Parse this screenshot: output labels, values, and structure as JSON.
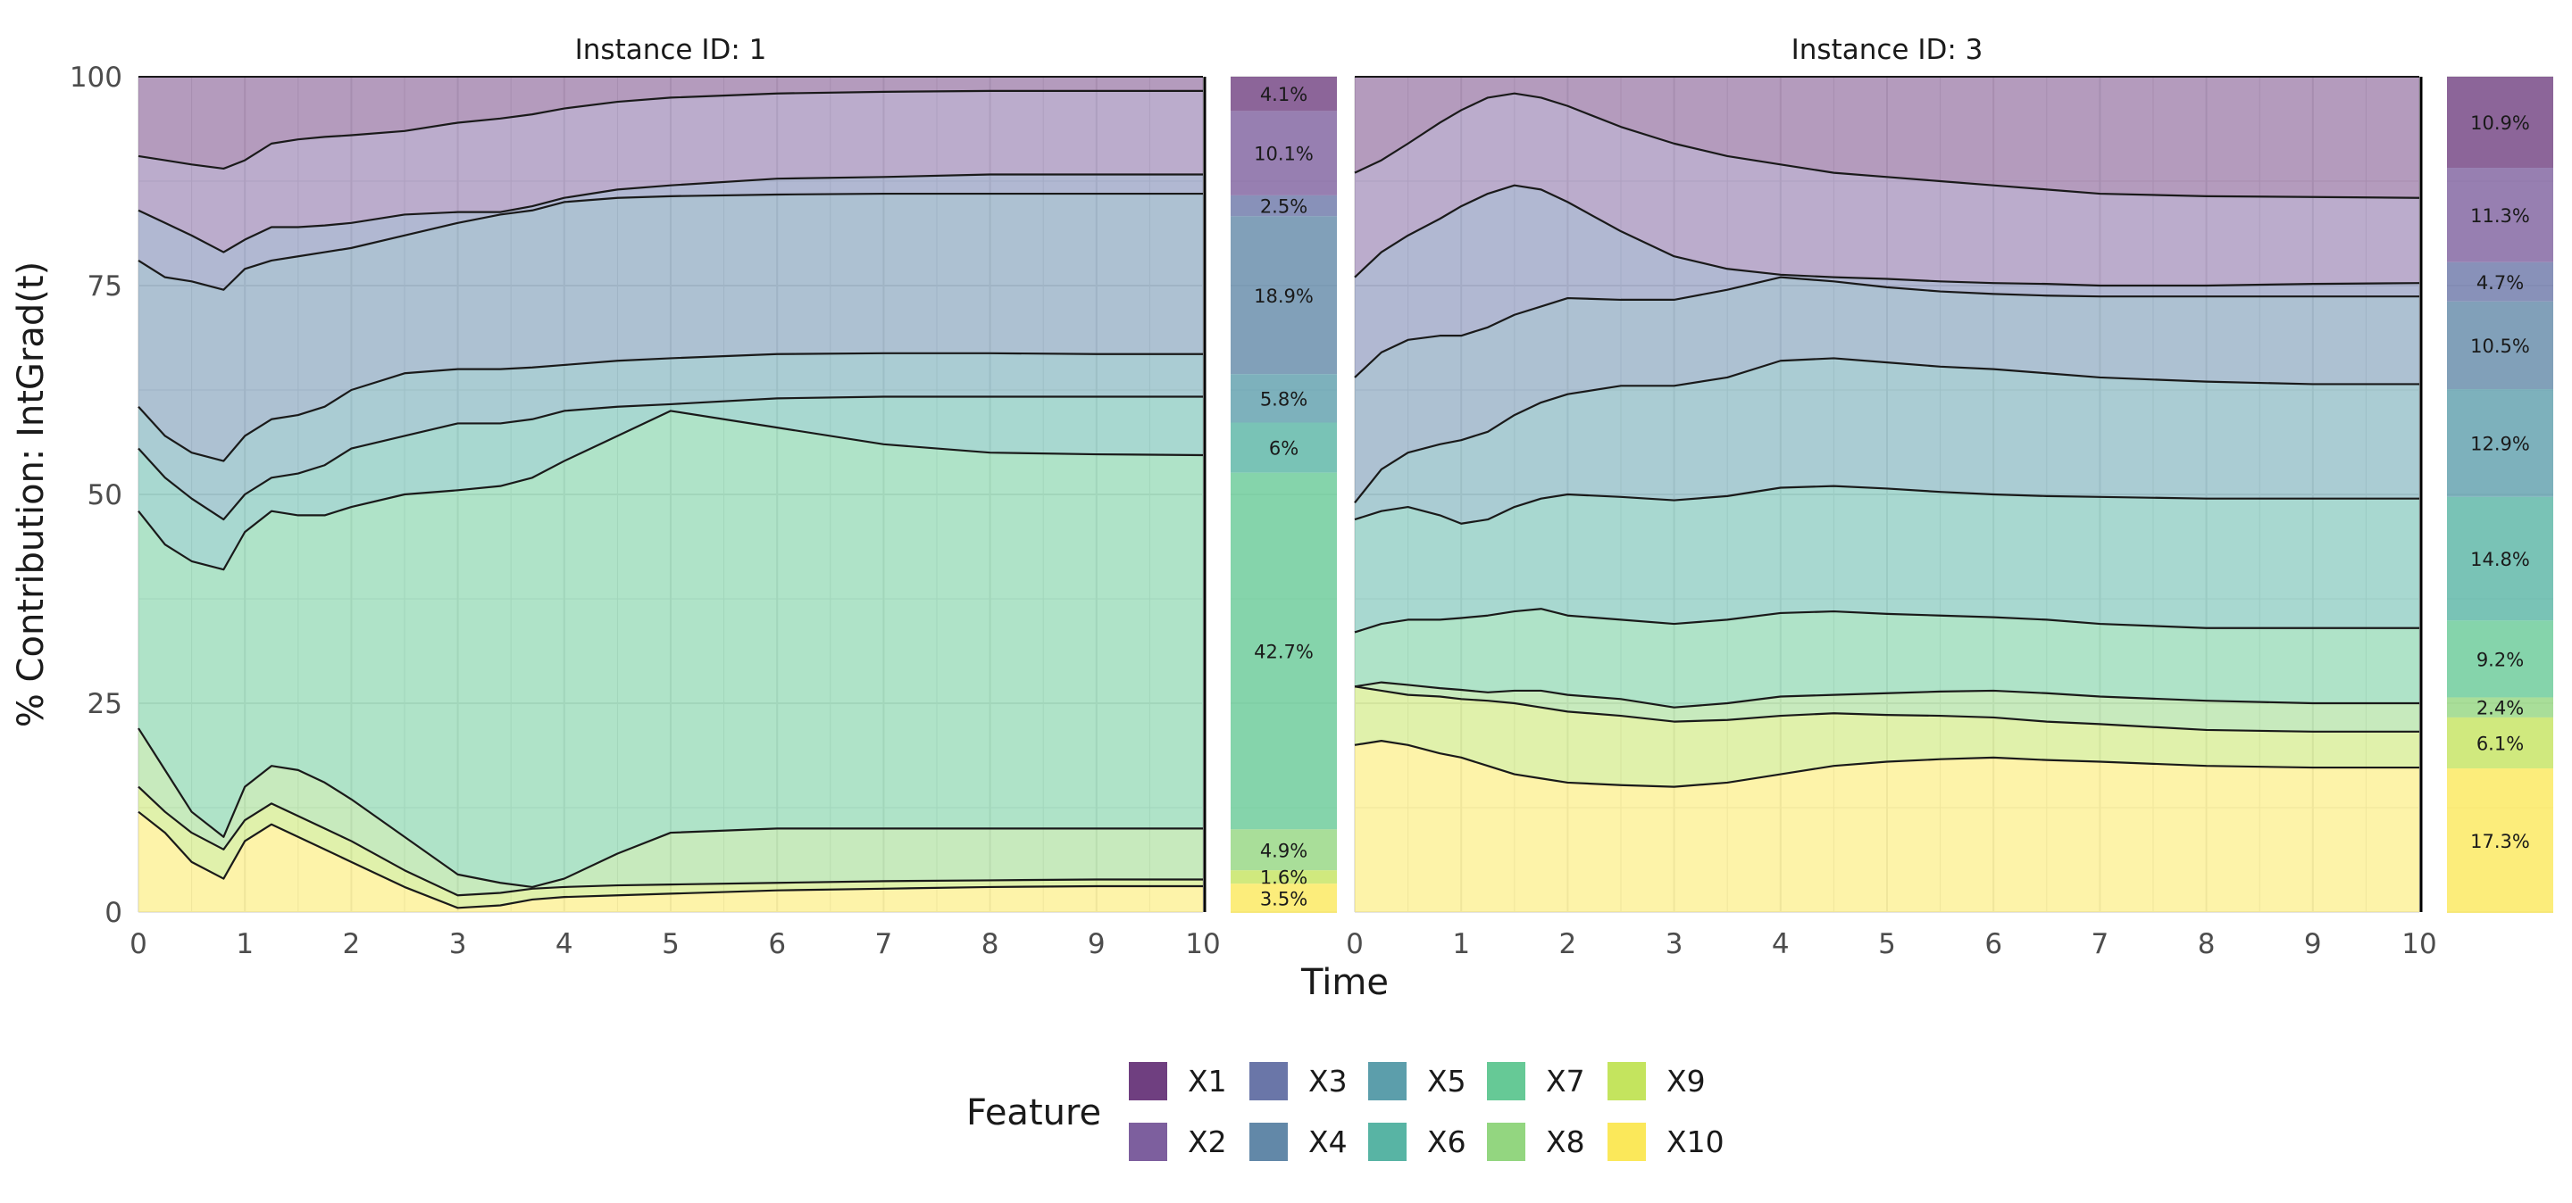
{
  "chart_data": {
    "type": "area",
    "stacking": "percent",
    "ylabel": "% Contribution: IntGrad(t)",
    "xlabel": "Time",
    "xlim": [
      0,
      10
    ],
    "ylim": [
      0,
      100
    ],
    "x_ticks": [
      0,
      1,
      2,
      3,
      4,
      5,
      6,
      7,
      8,
      9,
      10
    ],
    "y_ticks": [
      0,
      25,
      50,
      75,
      100
    ],
    "grid": true,
    "legend": {
      "title": "Feature",
      "position": "bottom",
      "labels": [
        "X1",
        "X2",
        "X3",
        "X4",
        "X5",
        "X6",
        "X7",
        "X8",
        "X9",
        "X10"
      ]
    },
    "feature_colors": {
      "X1": "#6f3f80",
      "X2": "#7d5f9e",
      "X3": "#6a76a8",
      "X4": "#6288a8",
      "X5": "#5c9eab",
      "X6": "#58b4a4",
      "X7": "#66c996",
      "X8": "#93d680",
      "X9": "#c4e45e",
      "X10": "#fbe85a"
    },
    "panels": [
      {
        "title": "Instance ID: 1",
        "x": [
          0,
          0.25,
          0.5,
          0.8,
          1,
          1.25,
          1.5,
          1.75,
          2,
          2.5,
          3,
          3.4,
          3.7,
          4,
          4.5,
          5,
          6,
          7,
          8,
          9,
          10
        ],
        "boundaries": [
          [
            12.0,
            9.5,
            6.0,
            4.0,
            8.5,
            10.5,
            9.0,
            7.5,
            6.0,
            3.0,
            0.5,
            0.8,
            1.5,
            1.8,
            2.0,
            2.2,
            2.6,
            2.8,
            3.0,
            3.1,
            3.1
          ],
          [
            15.0,
            12.0,
            9.5,
            7.5,
            11.0,
            13.0,
            11.5,
            10.0,
            8.5,
            5.0,
            2.0,
            2.3,
            2.8,
            3.0,
            3.2,
            3.3,
            3.5,
            3.7,
            3.8,
            3.9,
            3.9
          ],
          [
            22.0,
            17.0,
            12.0,
            9.0,
            15.0,
            17.5,
            17.0,
            15.5,
            13.5,
            9.0,
            4.5,
            3.5,
            3.0,
            4.0,
            7.0,
            9.5,
            10.0,
            10.0,
            10.0,
            10.0,
            10.0
          ],
          [
            48.0,
            44.0,
            42.0,
            41.0,
            45.5,
            48.0,
            47.5,
            47.5,
            48.5,
            50.0,
            50.5,
            51.0,
            52.0,
            54.0,
            57.0,
            60.0,
            58.0,
            56.0,
            55.0,
            54.8,
            54.7
          ],
          [
            55.5,
            52.0,
            49.5,
            47.0,
            50.0,
            52.0,
            52.5,
            53.5,
            55.5,
            57.0,
            58.5,
            58.5,
            59.0,
            60.0,
            60.5,
            60.8,
            61.5,
            61.7,
            61.7,
            61.7,
            61.7
          ],
          [
            60.5,
            57.0,
            55.0,
            54.0,
            57.0,
            59.0,
            59.5,
            60.5,
            62.5,
            64.5,
            65.0,
            65.0,
            65.2,
            65.5,
            66.0,
            66.3,
            66.8,
            66.9,
            66.9,
            66.8,
            66.8
          ],
          [
            78.0,
            76.0,
            75.5,
            74.5,
            77.0,
            78.0,
            78.5,
            79.0,
            79.5,
            81.0,
            82.5,
            83.5,
            84.0,
            85.0,
            85.5,
            85.7,
            85.9,
            86.0,
            86.0,
            86.0,
            86.0
          ],
          [
            84.0,
            82.5,
            81.0,
            79.0,
            80.5,
            82.0,
            82.0,
            82.2,
            82.5,
            83.5,
            83.8,
            83.8,
            84.5,
            85.5,
            86.5,
            87.0,
            87.8,
            88.0,
            88.3,
            88.3,
            88.3
          ],
          [
            90.5,
            90.0,
            89.5,
            89.0,
            90.0,
            92.0,
            92.5,
            92.8,
            93.0,
            93.5,
            94.5,
            95.0,
            95.5,
            96.2,
            97.0,
            97.5,
            98.0,
            98.2,
            98.3,
            98.3,
            98.3
          ]
        ],
        "summary": [
          {
            "feature": "X1",
            "pct": "4.1%",
            "value": 4.1
          },
          {
            "feature": "X2",
            "pct": "10.1%",
            "value": 10.1
          },
          {
            "feature": "X3",
            "pct": "2.5%",
            "value": 2.5
          },
          {
            "feature": "X4",
            "pct": "18.9%",
            "value": 18.9
          },
          {
            "feature": "X5",
            "pct": "5.8%",
            "value": 5.8
          },
          {
            "feature": "X6",
            "pct": "6%",
            "value": 6.0
          },
          {
            "feature": "X7",
            "pct": "42.7%",
            "value": 42.7
          },
          {
            "feature": "X8",
            "pct": "4.9%",
            "value": 4.9
          },
          {
            "feature": "X9",
            "pct": "1.6%",
            "value": 1.6
          },
          {
            "feature": "X10",
            "pct": "3.5%",
            "value": 3.5
          }
        ]
      },
      {
        "title": "Instance ID: 3",
        "x": [
          0,
          0.25,
          0.5,
          0.8,
          1,
          1.25,
          1.5,
          1.75,
          2,
          2.5,
          3,
          3.5,
          4,
          4.5,
          5,
          5.5,
          6,
          6.5,
          7,
          8,
          9,
          10
        ],
        "boundaries": [
          [
            20.0,
            20.5,
            20.0,
            19.0,
            18.5,
            17.5,
            16.5,
            16.0,
            15.5,
            15.2,
            15.0,
            15.5,
            16.5,
            17.5,
            18.0,
            18.3,
            18.5,
            18.2,
            18.0,
            17.5,
            17.3,
            17.3
          ],
          [
            27.0,
            26.5,
            26.0,
            25.8,
            25.5,
            25.3,
            25.0,
            24.5,
            24.0,
            23.5,
            22.8,
            23.0,
            23.5,
            23.8,
            23.6,
            23.5,
            23.3,
            22.8,
            22.5,
            21.8,
            21.6,
            21.6
          ],
          [
            27.0,
            27.5,
            27.2,
            26.8,
            26.6,
            26.3,
            26.5,
            26.5,
            26.0,
            25.5,
            24.5,
            25.0,
            25.8,
            26.0,
            26.2,
            26.4,
            26.5,
            26.2,
            25.8,
            25.3,
            25.0,
            25.0
          ],
          [
            33.5,
            34.5,
            35.0,
            35.0,
            35.2,
            35.5,
            36.0,
            36.3,
            35.5,
            35.0,
            34.5,
            35.0,
            35.8,
            36.0,
            35.7,
            35.5,
            35.3,
            35.0,
            34.5,
            34.0,
            34.0,
            34.0
          ],
          [
            47.0,
            48.0,
            48.5,
            47.5,
            46.5,
            47.0,
            48.5,
            49.5,
            50.0,
            49.7,
            49.3,
            49.8,
            50.8,
            51.0,
            50.7,
            50.3,
            50.0,
            49.8,
            49.7,
            49.5,
            49.5,
            49.5
          ],
          [
            49.0,
            53.0,
            55.0,
            56.0,
            56.5,
            57.5,
            59.5,
            61.0,
            62.0,
            63.0,
            63.0,
            64.0,
            66.0,
            66.3,
            65.8,
            65.3,
            65.0,
            64.5,
            64.0,
            63.5,
            63.2,
            63.2
          ],
          [
            64.0,
            67.0,
            68.5,
            69.0,
            69.0,
            70.0,
            71.5,
            72.5,
            73.5,
            73.3,
            73.3,
            74.5,
            76.0,
            75.5,
            74.8,
            74.3,
            74.0,
            73.8,
            73.7,
            73.7,
            73.7,
            73.7
          ],
          [
            76.0,
            79.0,
            81.0,
            83.0,
            84.5,
            86.0,
            87.0,
            86.5,
            85.0,
            81.5,
            78.5,
            77.0,
            76.3,
            76.0,
            75.8,
            75.5,
            75.3,
            75.2,
            75.0,
            75.0,
            75.2,
            75.3
          ],
          [
            88.5,
            90.0,
            92.0,
            94.5,
            96.0,
            97.5,
            98.0,
            97.5,
            96.5,
            94.0,
            92.0,
            90.5,
            89.5,
            88.5,
            88.0,
            87.5,
            87.0,
            86.5,
            86.0,
            85.7,
            85.6,
            85.5
          ]
        ],
        "summary": [
          {
            "feature": "X1",
            "pct": "10.9%",
            "value": 10.9
          },
          {
            "feature": "X2",
            "pct": "11.3%",
            "value": 11.3
          },
          {
            "feature": "X3",
            "pct": "4.7%",
            "value": 4.7
          },
          {
            "feature": "X4",
            "pct": "10.5%",
            "value": 10.5
          },
          {
            "feature": "X5",
            "pct": "12.9%",
            "value": 12.9
          },
          {
            "feature": "X6",
            "pct": "14.8%",
            "value": 14.8
          },
          {
            "feature": "X7",
            "pct": "9.2%",
            "value": 9.2
          },
          {
            "feature": "X8",
            "pct": "2.4%",
            "value": 2.4
          },
          {
            "feature": "X9",
            "pct": "6.1%",
            "value": 6.1
          },
          {
            "feature": "X10",
            "pct": "17.3%",
            "value": 17.3
          }
        ]
      }
    ]
  }
}
